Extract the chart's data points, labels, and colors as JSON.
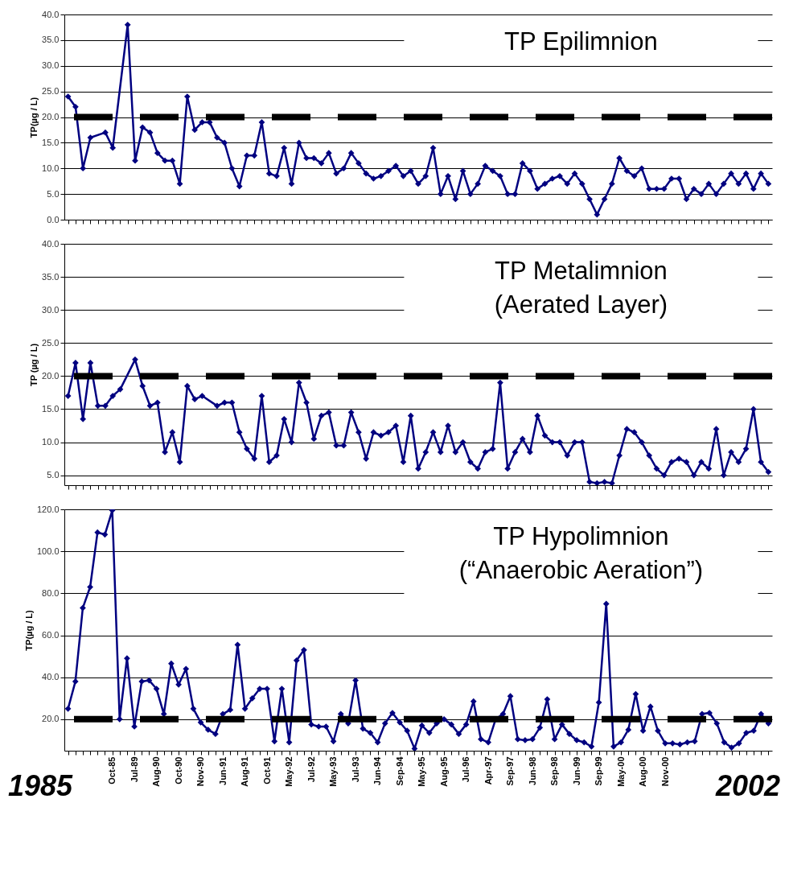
{
  "chart_data": [
    {
      "type": "line",
      "title": "TP Epilimnion",
      "ylabel": "TP(µg / L)",
      "categories": [
        null,
        null,
        null,
        null,
        null,
        null,
        null,
        null,
        null,
        null,
        null,
        null,
        null,
        null,
        null,
        null,
        null,
        null,
        null,
        null,
        null,
        null,
        null,
        null,
        null,
        null,
        null,
        null,
        null,
        null,
        null,
        null,
        null,
        null,
        null,
        null,
        null,
        null,
        null,
        null,
        null,
        null,
        null,
        null,
        null,
        null,
        null,
        null,
        null,
        null,
        null,
        null,
        null,
        null,
        null,
        null,
        null,
        null,
        null,
        null,
        null,
        null,
        null,
        null,
        null,
        null,
        null,
        null,
        null,
        null,
        null,
        null,
        null,
        null,
        null,
        null,
        null,
        null,
        null,
        null,
        null,
        null,
        null,
        null,
        null,
        null,
        null,
        null,
        null,
        null,
        null,
        null,
        null,
        null,
        null
      ],
      "series": [
        {
          "color": "#000080",
          "values": [
            24,
            22,
            10,
            16,
            null,
            17,
            14,
            null,
            38,
            11.5,
            18,
            17,
            13,
            11.5,
            11.5,
            7,
            24,
            17.5,
            19,
            19,
            16,
            15,
            10,
            6.5,
            12.5,
            12.5,
            19,
            9,
            8.5,
            14,
            7,
            15,
            12,
            12,
            11,
            13,
            9,
            10,
            13,
            11,
            9,
            8,
            8.5,
            9.5,
            10.5,
            8.5,
            9.5,
            7,
            8.5,
            14,
            5,
            8.5,
            4,
            9.5,
            5,
            7,
            10.5,
            9.5,
            8.5,
            5,
            5,
            11,
            9.5,
            6,
            7,
            8,
            8.5,
            7,
            9,
            7,
            4,
            1,
            4,
            7,
            12,
            9.5,
            8.5,
            10,
            6,
            6,
            6,
            8,
            8,
            4,
            6,
            5,
            7,
            5,
            7,
            9,
            7,
            9,
            6,
            9,
            7
          ]
        }
      ],
      "ylim": [
        0,
        40
      ],
      "yticks": [
        {
          "value": 0,
          "label": "0.0"
        },
        {
          "value": 5,
          "label": "5.0"
        },
        {
          "value": 10,
          "label": "10.0"
        },
        {
          "value": 15,
          "label": "15.0"
        },
        {
          "value": 20,
          "label": "20.0"
        },
        {
          "value": 25,
          "label": "25.0"
        },
        {
          "value": 30,
          "label": "30.0"
        },
        {
          "value": 35,
          "label": "35.0"
        },
        {
          "value": 40,
          "label": "40.0"
        }
      ],
      "ref_lines": [
        {
          "axis": "y",
          "value": 20,
          "color": "#000000",
          "line_style": "dashed"
        }
      ],
      "grid": "y",
      "marker": "diamond",
      "line_style": "solid",
      "tick_labels": "y"
    },
    {
      "type": "line",
      "title": "TP Metalimnion",
      "subtitle": "(Aerated Layer)",
      "ylabel": "TP (µg / L)",
      "categories": [
        null,
        null,
        null,
        null,
        null,
        null,
        null,
        null,
        null,
        null,
        null,
        null,
        null,
        null,
        null,
        null,
        null,
        null,
        null,
        null,
        null,
        null,
        null,
        null,
        null,
        null,
        null,
        null,
        null,
        null,
        null,
        null,
        null,
        null,
        null,
        null,
        null,
        null,
        null,
        null,
        null,
        null,
        null,
        null,
        null,
        null,
        null,
        null,
        null,
        null,
        null,
        null,
        null,
        null,
        null,
        null,
        null,
        null,
        null,
        null,
        null,
        null,
        null,
        null,
        null,
        null,
        null,
        null,
        null,
        null,
        null,
        null,
        null,
        null,
        null,
        null,
        null,
        null,
        null,
        null,
        null,
        null,
        null,
        null,
        null,
        null,
        null,
        null,
        null,
        null,
        null,
        null,
        null,
        null,
        null
      ],
      "series": [
        {
          "color": "#000080",
          "values": [
            17,
            22,
            13.5,
            22,
            15.5,
            15.5,
            17,
            18,
            null,
            22.5,
            18.5,
            15.5,
            16,
            8.5,
            11.5,
            7,
            18.5,
            16.5,
            17,
            null,
            15.5,
            16,
            16,
            11.5,
            9,
            7.5,
            17,
            7,
            8,
            13.5,
            10,
            19,
            16,
            10.5,
            14,
            14.5,
            9.5,
            9.5,
            14.5,
            11.5,
            7.5,
            11.5,
            11,
            11.5,
            12.5,
            7,
            14,
            6,
            8.5,
            11.5,
            8.5,
            12.5,
            8.5,
            10,
            7,
            6,
            8.5,
            9,
            19,
            6,
            8.5,
            10.5,
            8.5,
            14,
            11,
            10,
            10,
            8,
            10,
            10,
            4,
            3.8,
            4,
            3.8,
            8,
            12,
            11.5,
            10,
            8,
            6,
            5,
            7,
            7.5,
            7,
            5,
            7,
            6,
            12,
            5,
            8.5,
            7,
            9,
            15,
            7,
            5.5
          ]
        }
      ],
      "ylim": [
        3.5,
        40
      ],
      "yticks": [
        {
          "value": 5,
          "label": "5.0"
        },
        {
          "value": 10,
          "label": "10.0"
        },
        {
          "value": 15,
          "label": "15.0"
        },
        {
          "value": 20,
          "label": "20.0"
        },
        {
          "value": 25,
          "label": "25.0"
        },
        {
          "value": 30,
          "label": "30.0"
        },
        {
          "value": 35,
          "label": "35.0"
        },
        {
          "value": 40,
          "label": "40.0"
        }
      ],
      "ref_lines": [
        {
          "axis": "y",
          "value": 20,
          "color": "#000000",
          "line_style": "dashed"
        }
      ],
      "grid": "y",
      "marker": "diamond",
      "line_style": "solid",
      "tick_labels": "y"
    },
    {
      "type": "line",
      "title": "TP Hypolimnion",
      "subtitle": "(“Anaerobic Aeration”)",
      "ylabel": "TP(µg / L)",
      "categories": [
        null,
        null,
        null,
        null,
        null,
        null,
        "Oct-85",
        null,
        null,
        "Jul-89",
        null,
        null,
        "Aug-90",
        null,
        null,
        "Oct-90",
        null,
        null,
        "Nov-90",
        null,
        null,
        "Jun-91",
        null,
        null,
        "Aug-91",
        null,
        null,
        "Oct-91",
        null,
        null,
        "May-92",
        null,
        null,
        "Jul-92",
        null,
        null,
        "May-93",
        null,
        null,
        "Jul-93",
        null,
        null,
        "Jun-94",
        null,
        null,
        "Sep-94",
        null,
        null,
        "May-95",
        null,
        null,
        "Aug-95",
        null,
        null,
        "Jul-96",
        null,
        null,
        "Apr-97",
        null,
        null,
        "Sep-97",
        null,
        null,
        "Jun-98",
        null,
        null,
        "Sep-98",
        null,
        null,
        "Jun-99",
        null,
        null,
        "Sep-99",
        null,
        null,
        "May-00",
        null,
        null,
        "Aug-00",
        null,
        null,
        "Nov-00",
        null,
        null,
        null,
        null,
        null,
        null,
        null,
        null,
        null,
        null,
        null,
        null,
        null,
        null
      ],
      "series": [
        {
          "color": "#000080",
          "values": [
            25,
            38,
            73,
            83,
            109,
            108,
            119.5,
            20,
            49,
            16.5,
            38,
            38.5,
            34.5,
            22.5,
            46.5,
            36.5,
            44,
            25,
            18.5,
            15,
            13,
            22.5,
            24.5,
            55.5,
            25,
            30,
            34.5,
            34.5,
            9.5,
            34.5,
            9,
            48,
            53,
            17.5,
            16.5,
            16.5,
            9.5,
            22.5,
            18,
            38.5,
            15.5,
            13.5,
            9,
            18,
            23,
            18.5,
            14.5,
            6,
            17,
            13.5,
            18,
            20,
            17.5,
            13,
            17.5,
            28.5,
            10.5,
            9,
            20,
            22.5,
            31,
            10.5,
            10,
            10.5,
            16,
            29.5,
            10.5,
            17.5,
            13,
            10,
            9,
            7,
            28,
            75,
            7,
            9,
            15,
            32,
            14.5,
            26,
            14.5,
            8.5,
            8.5,
            8,
            9,
            9.5,
            22.5,
            23,
            18,
            9,
            6.5,
            8.5,
            13.5,
            14.5,
            22.5,
            18
          ]
        }
      ],
      "ylim": [
        5,
        120
      ],
      "yticks": [
        {
          "value": 20,
          "label": "20.0"
        },
        {
          "value": 40,
          "label": "40.0"
        },
        {
          "value": 60,
          "label": "60.0"
        },
        {
          "value": 80,
          "label": "80.0"
        },
        {
          "value": 100,
          "label": "100.0"
        },
        {
          "value": 120,
          "label": "120.0"
        }
      ],
      "ref_lines": [
        {
          "axis": "y",
          "value": 20,
          "color": "#000000",
          "line_style": "dashed"
        }
      ],
      "annotations": [
        "1985",
        "2002"
      ],
      "grid": "y",
      "marker": "diamond",
      "line_style": "solid"
    }
  ]
}
